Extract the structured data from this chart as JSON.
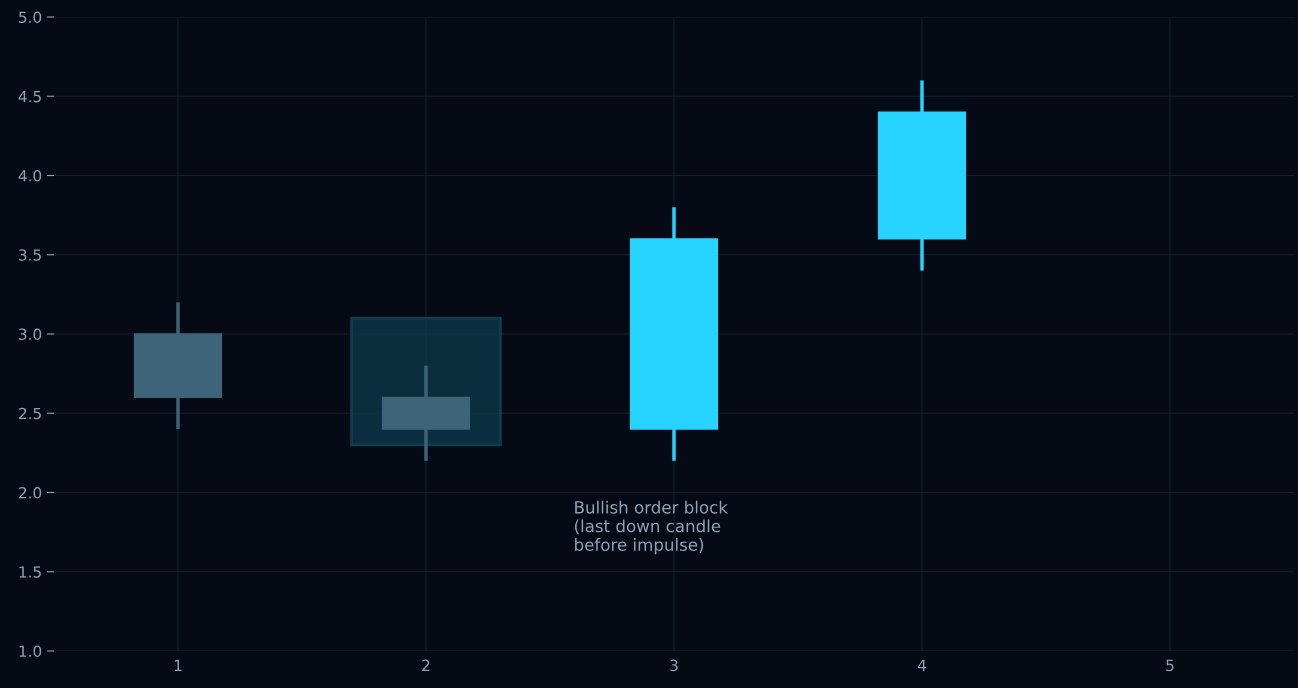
{
  "chart_data": {
    "type": "candlestick",
    "x": [
      1,
      2,
      3,
      4
    ],
    "ohlc": [
      [
        3.0,
        3.2,
        2.4,
        2.6
      ],
      [
        2.6,
        2.8,
        2.2,
        2.4
      ],
      [
        2.4,
        3.8,
        2.2,
        3.6
      ],
      [
        3.6,
        4.6,
        3.4,
        4.4
      ]
    ],
    "colors": [
      "#3d6478",
      "#3d6478",
      "#26d4ff",
      "#26d4ff"
    ],
    "xlim": [
      0.5,
      5.5
    ],
    "xticks": [
      1,
      2,
      3,
      4,
      5
    ],
    "ylim": [
      1.0,
      5.0
    ],
    "yticks": [
      {
        "value": 1.0,
        "label": "1.0"
      },
      {
        "value": 1.5,
        "label": "1.5"
      },
      {
        "value": 2.0,
        "label": "2.0"
      },
      {
        "value": 2.5,
        "label": "2.5"
      },
      {
        "value": 3.0,
        "label": "3.0"
      },
      {
        "value": 3.5,
        "label": "3.5"
      },
      {
        "value": 4.0,
        "label": "4.0"
      },
      {
        "value": 4.5,
        "label": "4.5"
      },
      {
        "value": 5.0,
        "label": "5.0"
      }
    ],
    "bands": [
      {
        "axis": "y",
        "from": 2.3,
        "to": 3.1,
        "color": "#0e3a4c"
      }
    ],
    "annotations": [
      "Bullish order block\n(last down candle\nbefore impulse)"
    ],
    "grid": true
  }
}
